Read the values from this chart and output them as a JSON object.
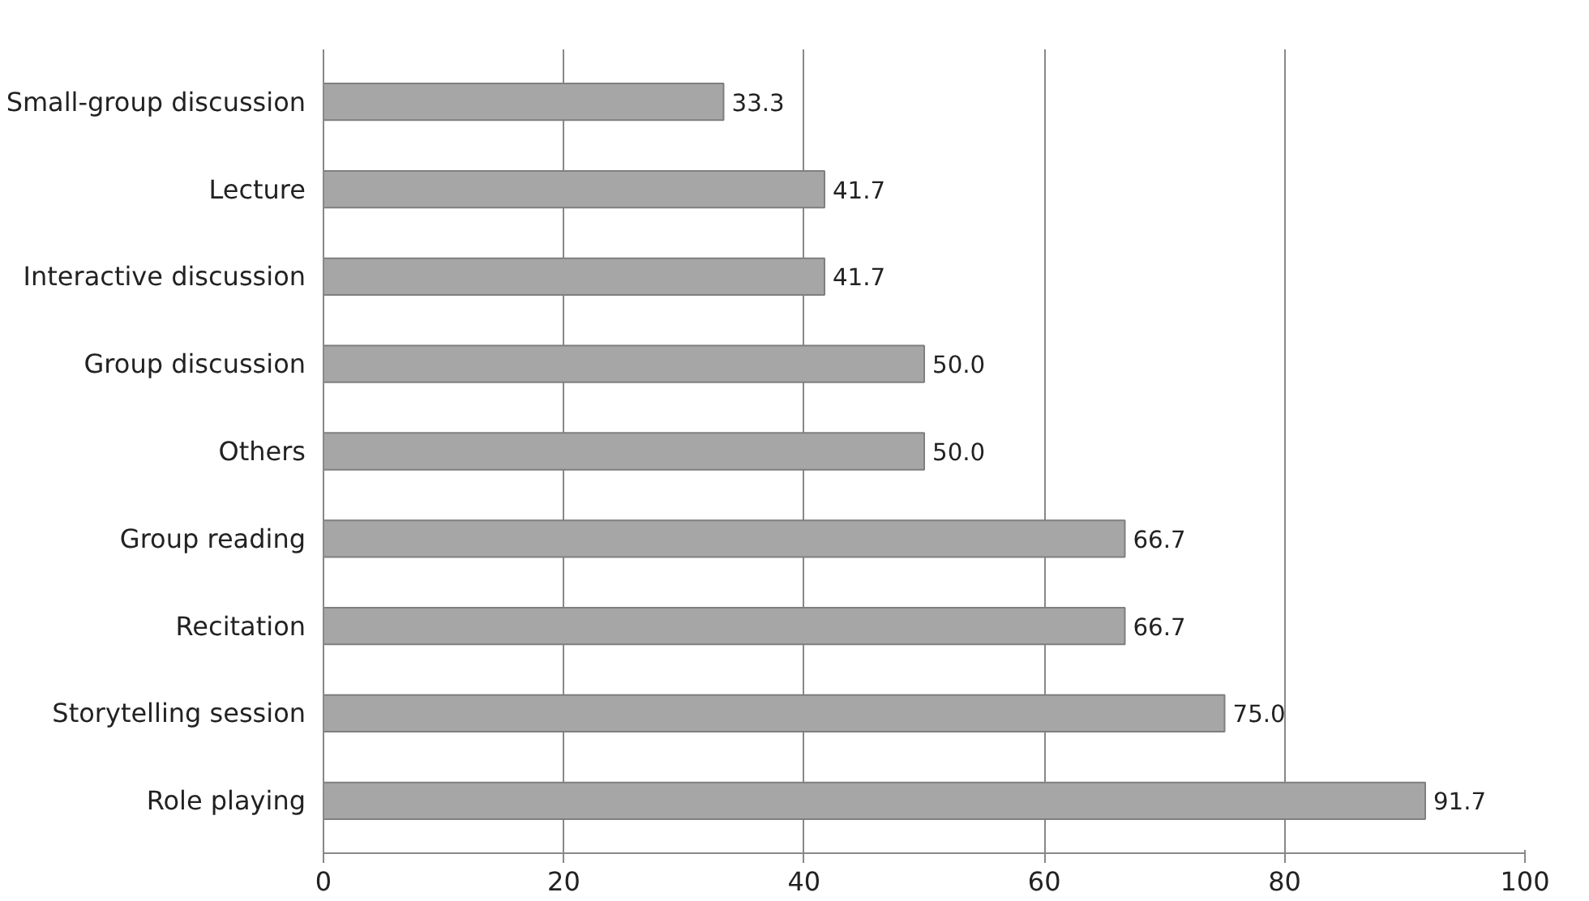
{
  "chart_data": {
    "type": "bar",
    "orientation": "horizontal",
    "categories": [
      "Small-group discussion",
      "Lecture",
      "Interactive discussion",
      "Group discussion",
      "Others",
      "Group reading",
      "Recitation",
      "Storytelling session",
      "Role playing"
    ],
    "values": [
      33.3,
      41.7,
      41.7,
      50.0,
      50.0,
      66.7,
      66.7,
      75.0,
      91.7
    ],
    "value_labels": [
      "33.3",
      "41.7",
      "41.7",
      "50.0",
      "50.0",
      "66.7",
      "66.7",
      "75.0",
      "91.7"
    ],
    "color": "#a6a6a6",
    "xlim": [
      0,
      100
    ],
    "xticks": [
      0,
      20,
      40,
      60,
      80,
      100
    ],
    "grid": "x"
  }
}
